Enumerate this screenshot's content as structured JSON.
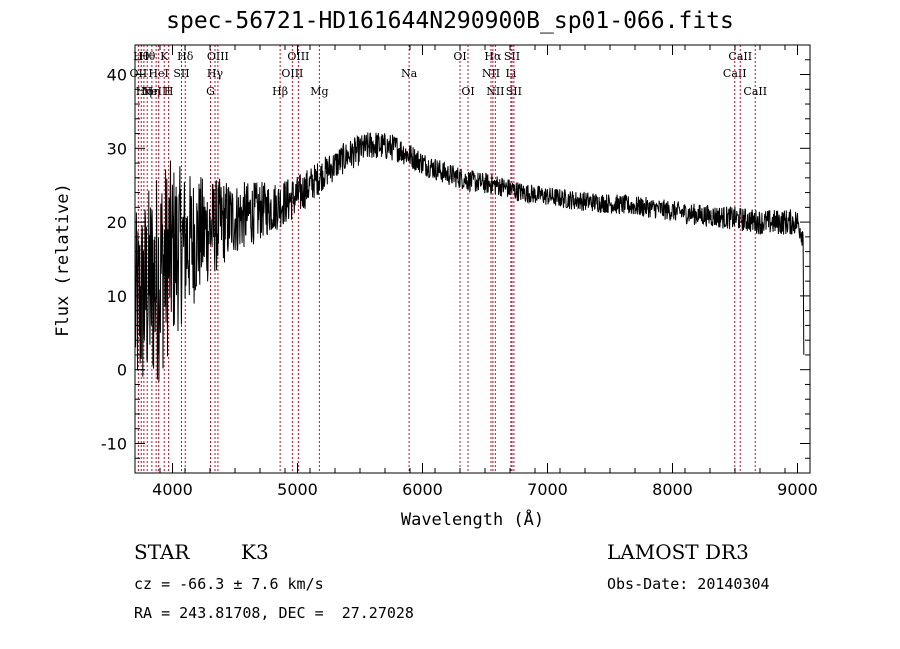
{
  "title": "spec-56721-HD161644N290900B_sp01-066.fits",
  "info": {
    "class_label": "STAR",
    "subclass": "K3",
    "survey": "LAMOST DR3",
    "cz": "cz = -66.3 ± 7.6 km/s",
    "obs_date": "Obs-Date: 20140304",
    "coords": "RA = 243.81708, DEC =  27.27028"
  },
  "chart_data": {
    "type": "line",
    "title": "spec-56721-HD161644N290900B_sp01-066.fits",
    "xlabel": "Wavelength (Å)",
    "ylabel": "Flux (relative)",
    "xlim": [
      3700,
      9100
    ],
    "ylim": [
      -14,
      44
    ],
    "xticks": [
      4000,
      5000,
      6000,
      7000,
      8000,
      9000
    ],
    "yticks": [
      -10,
      0,
      10,
      20,
      30,
      40
    ],
    "grid": false,
    "continuum": {
      "x": [
        3700,
        3850,
        4000,
        4200,
        4400,
        4600,
        4800,
        5000,
        5200,
        5400,
        5600,
        5800,
        6000,
        6200,
        6400,
        6600,
        6800,
        7000,
        7200,
        7500,
        7800,
        8000,
        8200,
        8500,
        8700,
        8900,
        9000,
        9050
      ],
      "y": [
        8,
        12,
        16,
        18,
        20,
        21,
        22,
        23.5,
        26.5,
        29,
        30.5,
        30,
        28,
        26.5,
        25.5,
        25,
        24,
        23.5,
        23,
        22.5,
        22,
        21.5,
        21,
        20.5,
        20,
        20,
        20,
        18
      ]
    },
    "noise": {
      "x": [
        3700,
        3900,
        4100,
        4300,
        4500,
        4800,
        5200,
        5600,
        6000,
        7000,
        8000,
        9000
      ],
      "amplitude": [
        13,
        15,
        10,
        7,
        5,
        3.5,
        2.2,
        2.0,
        1.6,
        1.3,
        1.4,
        1.8
      ]
    },
    "lines": [
      {
        "wave": 3727,
        "label": "OII",
        "row": 1
      },
      {
        "wave": 3750,
        "label": "Hθ",
        "row": 0
      },
      {
        "wave": 3771,
        "label": "Hη",
        "row": 2
      },
      {
        "wave": 3798,
        "label": "Hθ",
        "row": 0
      },
      {
        "wave": 3835,
        "label": "Hη",
        "row": 2
      },
      {
        "wave": 3869,
        "label": "NeIII",
        "row": 2
      },
      {
        "wave": 3889,
        "label": "HeI",
        "row": 1
      },
      {
        "wave": 3934,
        "label": "K",
        "row": 0
      },
      {
        "wave": 3969,
        "label": "H",
        "row": 2
      },
      {
        "wave": 4072,
        "label": "SII",
        "row": 1
      },
      {
        "wave": 4102,
        "label": "Hδ",
        "row": 0
      },
      {
        "wave": 4304,
        "label": "G",
        "row": 2
      },
      {
        "wave": 4340,
        "label": "Hγ",
        "row": 1
      },
      {
        "wave": 4363,
        "label": "OIII",
        "row": 0
      },
      {
        "wave": 4861,
        "label": "Hβ",
        "row": 2
      },
      {
        "wave": 4959,
        "label": "OIII",
        "row": 1
      },
      {
        "wave": 5007,
        "label": "OIII",
        "row": 0
      },
      {
        "wave": 5175,
        "label": "Mg",
        "row": 2
      },
      {
        "wave": 5893,
        "label": "Na",
        "row": 1
      },
      {
        "wave": 6300,
        "label": "OI",
        "row": 0
      },
      {
        "wave": 6364,
        "label": "OI",
        "row": 2
      },
      {
        "wave": 6548,
        "label": "NII",
        "row": 1
      },
      {
        "wave": 6563,
        "label": "Hα",
        "row": 0
      },
      {
        "wave": 6583,
        "label": "NII",
        "row": 2
      },
      {
        "wave": 6707,
        "label": "Li",
        "row": 1
      },
      {
        "wave": 6716,
        "label": "SII",
        "row": 0
      },
      {
        "wave": 6731,
        "label": "SII",
        "row": 2
      },
      {
        "wave": 8498,
        "label": "CaII",
        "row": 1
      },
      {
        "wave": 8542,
        "label": "CaII",
        "row": 0
      },
      {
        "wave": 8662,
        "label": "CaII",
        "row": 2
      }
    ],
    "line_color": "#b8102a"
  }
}
